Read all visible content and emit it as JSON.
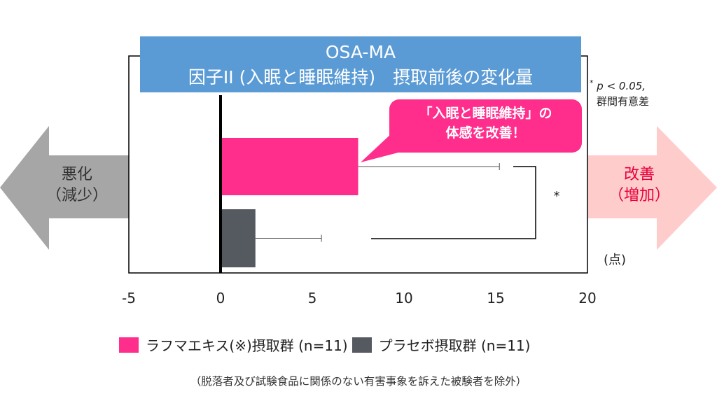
{
  "chart_data": {
    "type": "bar",
    "orientation": "horizontal",
    "title": [
      "OSA-MA",
      "因子II (入眠と睡眠維持)　摂取前後の変化量"
    ],
    "xlim": [
      -5,
      20
    ],
    "xticks": [
      "-5",
      "0",
      "5",
      "10",
      "15",
      "20"
    ],
    "xtick_values": [
      -5,
      0,
      5,
      10,
      15,
      20
    ],
    "unit": "(点)",
    "series": [
      {
        "name": "ラフマエキス(※)摂取群 (n=11)",
        "value": 7.5,
        "error": 7.7,
        "color": "#ff2d8c"
      },
      {
        "name": "プラセボ摂取群 (n=11)",
        "value": 1.9,
        "error": 3.6,
        "color": "#555a60"
      }
    ],
    "significance_mark": "*",
    "significance_note": [
      "p < 0.05,",
      "群間有意差"
    ],
    "callout": [
      "「入眠と睡眠維持」の",
      "体感を改善！"
    ],
    "left_arrow_label": [
      "悪化",
      "（減少）"
    ],
    "right_arrow_label": [
      "改善",
      "（増加）"
    ],
    "legend_position": "bottom"
  },
  "footnote": "（脱落者及び試験食品に関係のない有害事象を訴えた被験者を除外）",
  "colors": {
    "title_bg": "#5b9bd5",
    "callout": "#ff2d8c",
    "left_arrow": "#a6a6a6",
    "right_arrow": "#ffcccc",
    "right_text": "#e8003d"
  }
}
